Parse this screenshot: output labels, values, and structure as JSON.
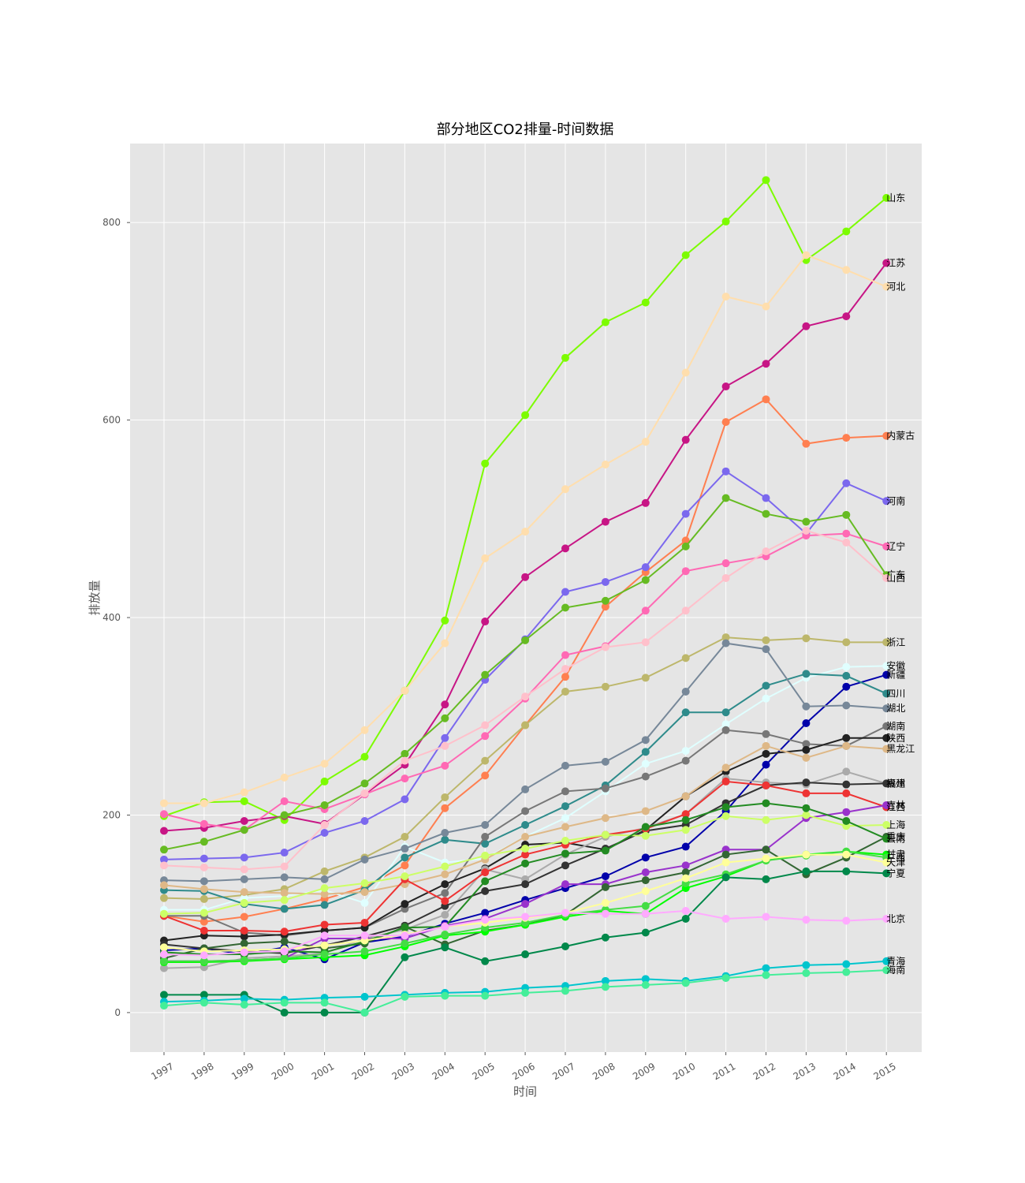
{
  "chart_data": {
    "type": "line",
    "title": "部分地区CO2排量-时间数据",
    "xlabel": "时间",
    "ylabel": "排放量",
    "x": [
      "1997",
      "1998",
      "1999",
      "2000",
      "2001",
      "2002",
      "2003",
      "2004",
      "2005",
      "2006",
      "2007",
      "2008",
      "2009",
      "2010",
      "2011",
      "2012",
      "2013",
      "2014",
      "2015"
    ],
    "yticks": [
      0,
      200,
      400,
      600,
      800
    ],
    "ylim": [
      -40,
      880
    ],
    "grid": true,
    "background": "#e5e5e5",
    "series": [
      {
        "name": "山东",
        "color": "#7cfc00",
        "values": [
          199,
          213,
          214,
          195,
          234,
          259,
          326,
          397,
          556,
          605,
          663,
          699,
          719,
          767,
          801,
          843,
          762,
          791,
          825
        ]
      },
      {
        "name": "江苏",
        "color": "#c71585",
        "values": [
          184,
          187,
          194,
          199,
          191,
          221,
          251,
          312,
          396,
          441,
          470,
          497,
          516,
          580,
          634,
          657,
          695,
          705,
          759
        ]
      },
      {
        "name": "河北",
        "color": "#ffdead",
        "values": [
          212,
          212,
          223,
          238,
          252,
          286,
          326,
          374,
          460,
          487,
          530,
          555,
          578,
          648,
          725,
          715,
          767,
          752,
          735
        ]
      },
      {
        "name": "内蒙古",
        "color": "#ff7f50",
        "values": [
          98,
          92,
          97,
          105,
          115,
          127,
          149,
          207,
          240,
          291,
          340,
          411,
          446,
          478,
          598,
          621,
          576,
          582,
          584
        ]
      },
      {
        "name": "河南",
        "color": "#7b68ee",
        "values": [
          155,
          156,
          157,
          162,
          182,
          194,
          216,
          278,
          337,
          378,
          426,
          436,
          451,
          505,
          548,
          521,
          485,
          536,
          518
        ]
      },
      {
        "name": "辽宁",
        "color": "#ff69b4",
        "values": [
          201,
          191,
          185,
          214,
          206,
          221,
          237,
          250,
          280,
          318,
          362,
          371,
          407,
          447,
          455,
          462,
          483,
          485,
          472
        ]
      },
      {
        "name": "广东",
        "color": "#66bb22",
        "values": [
          165,
          173,
          185,
          200,
          210,
          232,
          262,
          298,
          342,
          377,
          410,
          417,
          438,
          472,
          521,
          505,
          497,
          504,
          443
        ]
      },
      {
        "name": "山西",
        "color": "#ffc0cb",
        "values": [
          149,
          147,
          145,
          148,
          190,
          222,
          255,
          270,
          291,
          320,
          348,
          370,
          375,
          407,
          440,
          467,
          488,
          476,
          440
        ]
      },
      {
        "name": "浙江",
        "color": "#bdb76b",
        "values": [
          116,
          115,
          119,
          125,
          143,
          157,
          178,
          218,
          255,
          291,
          325,
          330,
          339,
          359,
          380,
          377,
          379,
          375,
          375
        ]
      },
      {
        "name": "安徽",
        "color": "#e0ffff",
        "values": [
          104,
          104,
          116,
          118,
          124,
          111,
          168,
          152,
          156,
          178,
          197,
          224,
          252,
          265,
          292,
          318,
          339,
          350,
          351
        ]
      },
      {
        "name": "新疆",
        "color": "#0000aa",
        "values": [
          63,
          65,
          59,
          66,
          54,
          71,
          77,
          90,
          101,
          114,
          126,
          138,
          157,
          168,
          204,
          251,
          293,
          330,
          342
        ]
      },
      {
        "name": "四川",
        "color": "#2e8b8b",
        "values": [
          124,
          123,
          110,
          105,
          109,
          124,
          157,
          175,
          171,
          190,
          209,
          230,
          264,
          304,
          304,
          331,
          343,
          341,
          323
        ]
      },
      {
        "name": "湖北",
        "color": "#778899",
        "values": [
          134,
          133,
          135,
          137,
          135,
          155,
          166,
          182,
          190,
          226,
          250,
          254,
          276,
          325,
          374,
          368,
          310,
          311,
          308
        ]
      },
      {
        "name": "湖南",
        "color": "#777777",
        "values": [
          98,
          98,
          81,
          78,
          83,
          86,
          105,
          121,
          178,
          204,
          224,
          227,
          239,
          255,
          286,
          282,
          272,
          270,
          290
        ]
      },
      {
        "name": "陕西",
        "color": "#222222",
        "values": [
          73,
          78,
          77,
          79,
          83,
          86,
          110,
          130,
          146,
          170,
          172,
          165,
          185,
          219,
          244,
          262,
          266,
          278,
          278
        ]
      },
      {
        "name": "黑龙江",
        "color": "#deb887",
        "values": [
          129,
          125,
          122,
          121,
          120,
          122,
          130,
          140,
          155,
          178,
          188,
          197,
          204,
          219,
          248,
          270,
          258,
          270,
          267
        ]
      },
      {
        "name": "贵州",
        "color": "#aaaaaa",
        "values": [
          45,
          46,
          55,
          57,
          60,
          75,
          84,
          99,
          145,
          135,
          160,
          178,
          187,
          201,
          237,
          233,
          231,
          244,
          232
        ]
      },
      {
        "name": "福建",
        "color": "#333333",
        "values": [
          69,
          65,
          62,
          60,
          68,
          77,
          88,
          108,
          123,
          130,
          149,
          166,
          184,
          190,
          212,
          230,
          233,
          231,
          232
        ]
      },
      {
        "name": "江西",
        "color": "#ee3333",
        "values": [
          98,
          83,
          83,
          82,
          89,
          91,
          135,
          113,
          142,
          160,
          170,
          180,
          186,
          201,
          234,
          230,
          222,
          222,
          208
        ]
      },
      {
        "name": "吉林",
        "color": "#9932cc",
        "values": [
          52,
          52,
          53,
          55,
          75,
          75,
          75,
          88,
          95,
          110,
          130,
          130,
          142,
          149,
          165,
          165,
          197,
          203,
          210
        ]
      },
      {
        "name": "上海",
        "color": "#ccff66",
        "values": [
          100,
          101,
          111,
          114,
          126,
          131,
          138,
          148,
          159,
          166,
          174,
          180,
          179,
          185,
          199,
          195,
          200,
          189,
          190
        ]
      },
      {
        "name": "重庆",
        "color": "#336633",
        "values": [
          55,
          65,
          70,
          72,
          65,
          70,
          87,
          69,
          83,
          89,
          99,
          127,
          134,
          142,
          160,
          165,
          140,
          157,
          178
        ]
      },
      {
        "name": "云南",
        "color": "#228b22",
        "values": [
          61,
          59,
          59,
          62,
          61,
          72,
          86,
          87,
          133,
          151,
          161,
          164,
          188,
          195,
          208,
          212,
          207,
          194,
          176
        ]
      },
      {
        "name": "甘肃",
        "color": "#00ff00",
        "values": [
          51,
          51,
          52,
          54,
          56,
          58,
          67,
          78,
          82,
          89,
          97,
          103,
          100,
          126,
          138,
          154,
          160,
          163,
          160
        ]
      },
      {
        "name": "广西",
        "color": "#44dd44",
        "values": [
          52,
          52,
          53,
          55,
          59,
          62,
          70,
          79,
          86,
          91,
          99,
          104,
          108,
          131,
          140,
          154,
          159,
          163,
          157
        ]
      },
      {
        "name": "天津",
        "color": "#ffff99",
        "values": [
          66,
          62,
          63,
          64,
          68,
          73,
          79,
          87,
          91,
          96,
          101,
          111,
          123,
          136,
          152,
          156,
          160,
          160,
          152
        ]
      },
      {
        "name": "宁夏",
        "color": "#00884a",
        "values": [
          18,
          18,
          18,
          0,
          0,
          0,
          56,
          66,
          52,
          59,
          67,
          76,
          81,
          95,
          137,
          135,
          143,
          143,
          141
        ]
      },
      {
        "name": "北京",
        "color": "#ffaaff",
        "values": [
          59,
          58,
          61,
          62,
          78,
          78,
          78,
          87,
          94,
          97,
          101,
          100,
          100,
          103,
          95,
          97,
          94,
          93,
          95
        ]
      },
      {
        "name": "青海",
        "color": "#00c5cd",
        "values": [
          11,
          12,
          14,
          13,
          15,
          16,
          18,
          20,
          21,
          25,
          27,
          32,
          34,
          32,
          37,
          45,
          48,
          49,
          52
        ]
      },
      {
        "name": "海南",
        "color": "#44ee99",
        "values": [
          7,
          10,
          8,
          10,
          10,
          0,
          16,
          17,
          17,
          20,
          22,
          26,
          28,
          30,
          35,
          38,
          40,
          41,
          43
        ]
      }
    ]
  }
}
